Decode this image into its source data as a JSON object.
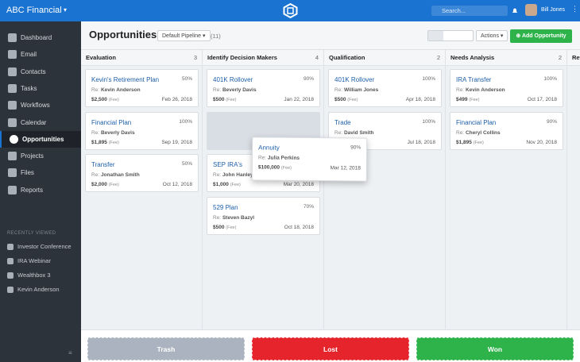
{
  "header": {
    "app_name": "ABC Financial",
    "search_placeholder": "Search...",
    "user_name": "Bill Jones"
  },
  "sidebar": {
    "nav": [
      "Dashboard",
      "Email",
      "Contacts",
      "Tasks",
      "Workflows",
      "Calendar",
      "Opportunities",
      "Projects",
      "Files",
      "Reports"
    ],
    "active": 6,
    "recent_title": "RECENTLY VIEWED",
    "recent": [
      "Investor Conference",
      "IRA Webinar",
      "Wealthbox 3",
      "Kevin Anderson"
    ]
  },
  "toolbar": {
    "title": "Opportunities",
    "pipeline": "Default Pipeline",
    "count": "(11)",
    "actions": "Actions",
    "add": "Add Opportunity"
  },
  "contact_label": "Re:",
  "fee_label": "(Fee)",
  "columns": [
    {
      "name": "Evaluation",
      "count": 3,
      "cards": [
        {
          "title": "Kevin's Retirement Plan",
          "percent": "50%",
          "contact": "Kevin Anderson",
          "amount": "$2,500",
          "date": "Feb 26, 2018"
        },
        {
          "title": "Financial Plan",
          "percent": "100%",
          "contact": "Beverly Davis",
          "amount": "$1,895",
          "date": "Sep 19, 2018"
        },
        {
          "title": "Transfer",
          "percent": "50%",
          "contact": "Jonathan Smith",
          "amount": "$2,000",
          "date": "Oct 12, 2018"
        }
      ]
    },
    {
      "name": "Identify Decision Makers",
      "count": 4,
      "placeholder": 1,
      "cards": [
        {
          "title": "401K Rollover",
          "percent": "90%",
          "contact": "Beverly Davis",
          "amount": "$500",
          "date": "Jan 22, 2018"
        },
        {
          "title": "SEP IRA's",
          "contact": "John Hanley",
          "amount": "$1,000",
          "date": "Mar 20, 2018"
        },
        {
          "title": "529 Plan",
          "percent": "70%",
          "contact": "Steven Bazyl",
          "amount": "$500",
          "date": "Oct 18, 2018"
        }
      ]
    },
    {
      "name": "Qualification",
      "count": 2,
      "cards": [
        {
          "title": "401K Rollover",
          "percent": "100%",
          "contact": "William Jones",
          "amount": "$500",
          "date": "Apr 18, 2018"
        },
        {
          "title": "Trade",
          "percent": "100%",
          "contact": "David Smith",
          "date": "Jul 18, 2018"
        }
      ]
    },
    {
      "name": "Needs Analysis",
      "count": 2,
      "cards": [
        {
          "title": "IRA Transfer",
          "percent": "100%",
          "contact": "Kevin Anderson",
          "amount": "$499",
          "date": "Oct 17, 2018"
        },
        {
          "title": "Financial Plan",
          "percent": "90%",
          "contact": "Cheryl Collins",
          "amount": "$1,895",
          "date": "Nov 20, 2018"
        }
      ]
    },
    {
      "name": "Revi",
      "cards": []
    }
  ],
  "dragging": {
    "title": "Annuity",
    "percent": "90%",
    "contact": "Julia Perkins",
    "amount": "$100,000",
    "date": "Mar 12, 2018"
  },
  "drop_zones": [
    "Trash",
    "Lost",
    "Won"
  ]
}
